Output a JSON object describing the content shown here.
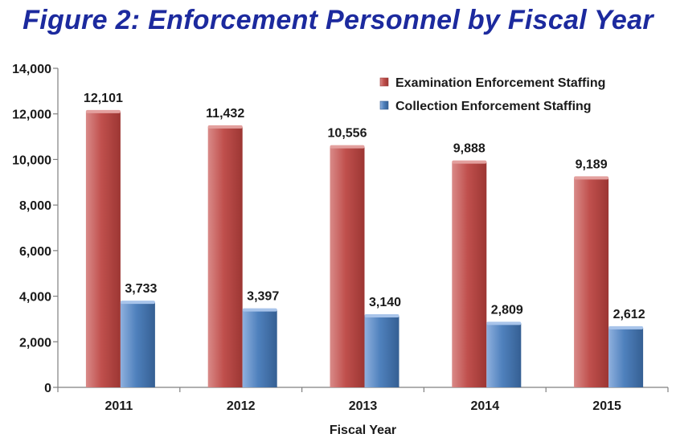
{
  "title": "Figure 2:  Enforcement Personnel by Fiscal Year",
  "chart_data": {
    "type": "bar",
    "categories": [
      "2011",
      "2012",
      "2013",
      "2014",
      "2015"
    ],
    "series": [
      {
        "name": "Examination Enforcement Staffing",
        "values": [
          12101,
          11432,
          10556,
          9888,
          9189
        ],
        "labels": [
          "12,101",
          "11,432",
          "10,556",
          "9,888",
          "9,189"
        ],
        "color": "#c0504d"
      },
      {
        "name": "Collection Enforcement Staffing",
        "values": [
          3733,
          3397,
          3140,
          2809,
          2612
        ],
        "labels": [
          "3,733",
          "3,397",
          "3,140",
          "2,809",
          "2,612"
        ],
        "color": "#4f81bd"
      }
    ],
    "xlabel": "Fiscal Year",
    "ylabel": "",
    "ylim": [
      0,
      14000
    ],
    "yticks": [
      0,
      2000,
      4000,
      6000,
      8000,
      10000,
      12000,
      14000
    ],
    "ytick_labels": [
      "0",
      "2,000",
      "4,000",
      "6,000",
      "8,000",
      "10,000",
      "12,000",
      "14,000"
    ],
    "grid": false,
    "legend": "top-right"
  }
}
